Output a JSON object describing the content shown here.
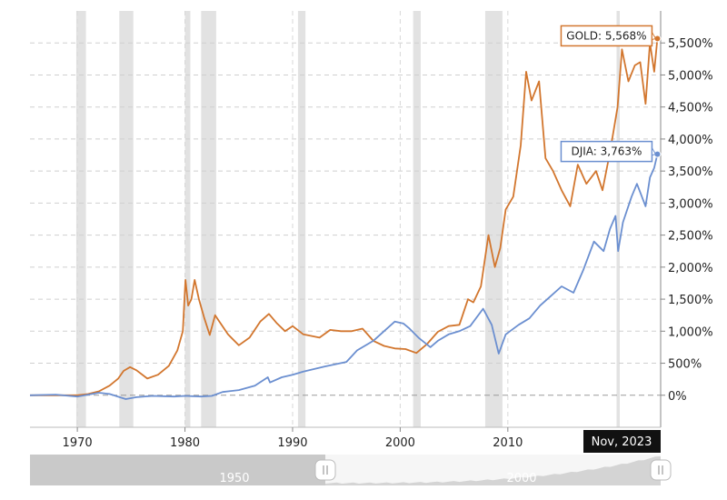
{
  "chart_data": {
    "type": "line",
    "title": "",
    "xlabel": "",
    "ylabel": "",
    "x_ticks": [
      "1970",
      "1980",
      "1990",
      "2000",
      "2010"
    ],
    "y_ticks": [
      "0%",
      "500%",
      "1,000%",
      "1,500%",
      "2,000%",
      "2,500%",
      "3,000%",
      "3,500%",
      "4,000%",
      "4,500%",
      "5,000%",
      "5,500%"
    ],
    "xlim": [
      1965.6,
      2024.2
    ],
    "ylim": [
      -500,
      6000
    ],
    "grid": true,
    "recessions": [
      [
        1969.9,
        1970.8
      ],
      [
        1973.9,
        1975.2
      ],
      [
        1980.0,
        1980.5
      ],
      [
        1981.5,
        1982.9
      ],
      [
        1990.5,
        1991.2
      ],
      [
        2001.2,
        2001.9
      ],
      [
        2007.9,
        2009.5
      ],
      [
        2020.1,
        2020.4
      ]
    ],
    "reference_lines": [
      {
        "y": 0,
        "style": "dashed"
      }
    ],
    "series": [
      {
        "name": "GOLD",
        "color": "#d2762e",
        "end_label": "GOLD: 5,568%",
        "points": [
          [
            1965.6,
            0
          ],
          [
            1968,
            0
          ],
          [
            1970,
            0
          ],
          [
            1971,
            20
          ],
          [
            1972,
            60
          ],
          [
            1973,
            150
          ],
          [
            1973.8,
            260
          ],
          [
            1974.3,
            380
          ],
          [
            1974.9,
            440
          ],
          [
            1975.5,
            390
          ],
          [
            1976.5,
            260
          ],
          [
            1977.5,
            320
          ],
          [
            1978.5,
            460
          ],
          [
            1979.3,
            700
          ],
          [
            1979.8,
            1000
          ],
          [
            1980.05,
            1800
          ],
          [
            1980.3,
            1400
          ],
          [
            1980.6,
            1500
          ],
          [
            1980.9,
            1800
          ],
          [
            1981.3,
            1500
          ],
          [
            1981.8,
            1200
          ],
          [
            1982.3,
            940
          ],
          [
            1982.8,
            1250
          ],
          [
            1983.2,
            1150
          ],
          [
            1984,
            950
          ],
          [
            1985,
            780
          ],
          [
            1986,
            900
          ],
          [
            1987,
            1150
          ],
          [
            1987.8,
            1270
          ],
          [
            1988.5,
            1130
          ],
          [
            1989.3,
            1000
          ],
          [
            1990,
            1080
          ],
          [
            1991,
            950
          ],
          [
            1992.5,
            900
          ],
          [
            1993.5,
            1020
          ],
          [
            1994.5,
            1000
          ],
          [
            1995.5,
            1000
          ],
          [
            1996.5,
            1040
          ],
          [
            1997.5,
            850
          ],
          [
            1998.5,
            770
          ],
          [
            1999.5,
            730
          ],
          [
            2000.5,
            720
          ],
          [
            2001.5,
            660
          ],
          [
            2002.5,
            800
          ],
          [
            2003.5,
            990
          ],
          [
            2004.5,
            1080
          ],
          [
            2005.5,
            1100
          ],
          [
            2006.3,
            1500
          ],
          [
            2006.8,
            1450
          ],
          [
            2007.5,
            1700
          ],
          [
            2008.2,
            2500
          ],
          [
            2008.8,
            2000
          ],
          [
            2009.3,
            2300
          ],
          [
            2009.8,
            2900
          ],
          [
            2010.5,
            3100
          ],
          [
            2011.2,
            3900
          ],
          [
            2011.7,
            5050
          ],
          [
            2012.2,
            4600
          ],
          [
            2012.9,
            4900
          ],
          [
            2013.5,
            3700
          ],
          [
            2014.2,
            3500
          ],
          [
            2015,
            3200
          ],
          [
            2015.8,
            2950
          ],
          [
            2016.5,
            3600
          ],
          [
            2017.3,
            3300
          ],
          [
            2018.2,
            3500
          ],
          [
            2018.8,
            3200
          ],
          [
            2019.5,
            3800
          ],
          [
            2020.2,
            4500
          ],
          [
            2020.6,
            5400
          ],
          [
            2021.2,
            4900
          ],
          [
            2021.8,
            5150
          ],
          [
            2022.3,
            5200
          ],
          [
            2022.8,
            4550
          ],
          [
            2023.2,
            5500
          ],
          [
            2023.6,
            5050
          ],
          [
            2023.9,
            5568
          ]
        ]
      },
      {
        "name": "DJIA",
        "color": "#6b8fd0",
        "end_label": "DJIA: 3,763%",
        "points": [
          [
            1965.6,
            0
          ],
          [
            1968,
            10
          ],
          [
            1970,
            -20
          ],
          [
            1972,
            40
          ],
          [
            1973,
            20
          ],
          [
            1974.5,
            -60
          ],
          [
            1975.5,
            -30
          ],
          [
            1977,
            -10
          ],
          [
            1979,
            -20
          ],
          [
            1980,
            -10
          ],
          [
            1981.5,
            -20
          ],
          [
            1982.5,
            -10
          ],
          [
            1983.5,
            50
          ],
          [
            1985,
            80
          ],
          [
            1986.5,
            150
          ],
          [
            1987.7,
            280
          ],
          [
            1987.9,
            200
          ],
          [
            1989,
            280
          ],
          [
            1990,
            320
          ],
          [
            1991,
            370
          ],
          [
            1993,
            450
          ],
          [
            1995,
            520
          ],
          [
            1996,
            700
          ],
          [
            1997.5,
            850
          ],
          [
            1998.5,
            1000
          ],
          [
            1999.5,
            1150
          ],
          [
            2000.3,
            1120
          ],
          [
            2000.8,
            1050
          ],
          [
            2001.7,
            900
          ],
          [
            2002.8,
            750
          ],
          [
            2003.5,
            850
          ],
          [
            2004.5,
            950
          ],
          [
            2005.5,
            1000
          ],
          [
            2006.5,
            1080
          ],
          [
            2007.7,
            1350
          ],
          [
            2008.5,
            1100
          ],
          [
            2009.15,
            650
          ],
          [
            2009.8,
            950
          ],
          [
            2011,
            1100
          ],
          [
            2012,
            1200
          ],
          [
            2013,
            1400
          ],
          [
            2014,
            1550
          ],
          [
            2015,
            1700
          ],
          [
            2016.1,
            1600
          ],
          [
            2017,
            1950
          ],
          [
            2018,
            2400
          ],
          [
            2018.9,
            2250
          ],
          [
            2019.5,
            2600
          ],
          [
            2020.0,
            2800
          ],
          [
            2020.25,
            2250
          ],
          [
            2020.7,
            2700
          ],
          [
            2021.5,
            3100
          ],
          [
            2022,
            3300
          ],
          [
            2022.8,
            2950
          ],
          [
            2023.2,
            3400
          ],
          [
            2023.6,
            3550
          ],
          [
            2023.9,
            3763
          ]
        ]
      }
    ],
    "tooltip": "Nov, 2023",
    "navigator": {
      "labels": [
        "1950",
        "2000"
      ]
    }
  }
}
